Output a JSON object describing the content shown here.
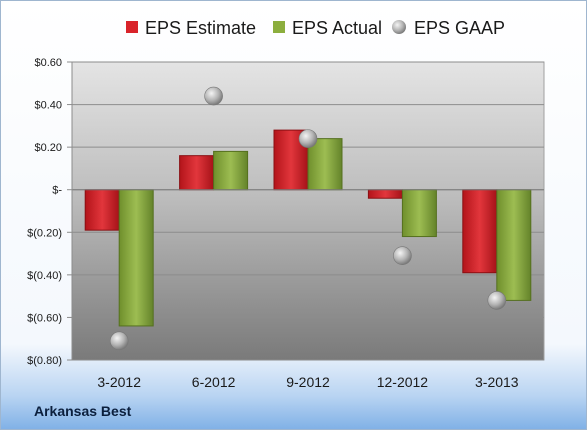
{
  "chart_data": {
    "type": "bar",
    "categories": [
      "3-2012",
      "6-2012",
      "9-2012",
      "12-2012",
      "3-2013"
    ],
    "series": [
      {
        "name": "EPS Estimate",
        "kind": "bar",
        "color": "#d9232a",
        "values": [
          -0.19,
          0.16,
          0.28,
          -0.04,
          -0.39
        ]
      },
      {
        "name": "EPS Actual",
        "kind": "bar",
        "color": "#8cae3e",
        "values": [
          -0.64,
          0.18,
          0.24,
          -0.22,
          -0.52
        ]
      },
      {
        "name": "EPS GAAP",
        "kind": "scatter",
        "color": "#b8b8b8",
        "values": [
          -0.71,
          0.44,
          0.24,
          -0.31,
          -0.52
        ]
      }
    ],
    "y_ticks": [
      {
        "value": 0.6,
        "label": "$0.60"
      },
      {
        "value": 0.4,
        "label": "$0.40"
      },
      {
        "value": 0.2,
        "label": "$0.20"
      },
      {
        "value": 0,
        "label": "$-"
      },
      {
        "value": -0.2,
        "label": "$(0.20)"
      },
      {
        "value": -0.4,
        "label": "$(0.40)"
      },
      {
        "value": -0.6,
        "label": "$(0.60)"
      },
      {
        "value": -0.8,
        "label": "$(0.80)"
      }
    ],
    "ylim": [
      -0.8,
      0.6
    ],
    "grid": true,
    "legend_position": "top",
    "footer_label": "Arkansas Best"
  }
}
